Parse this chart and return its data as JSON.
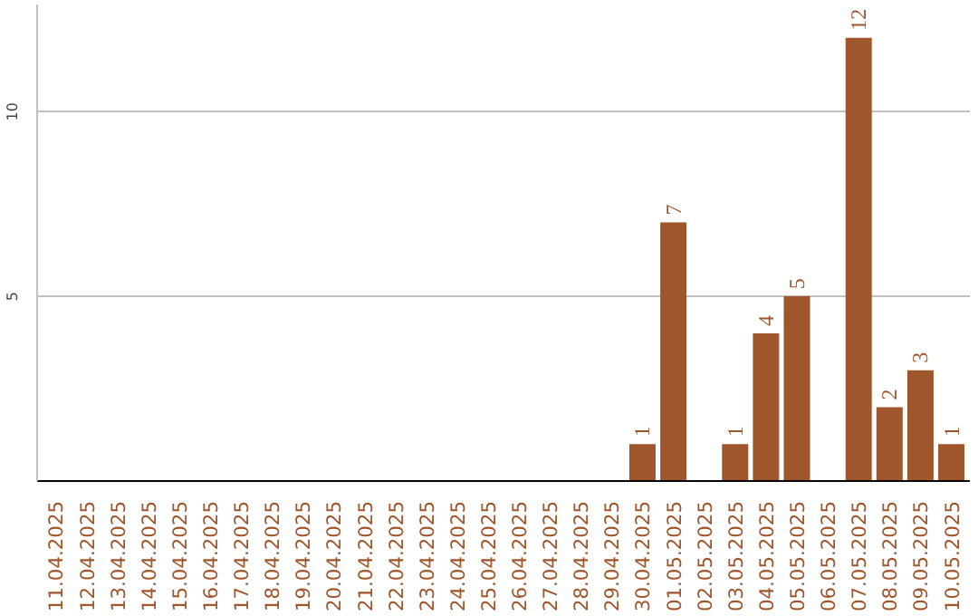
{
  "chart_data": {
    "type": "bar",
    "categories": [
      "11.04.2025",
      "12.04.2025",
      "13.04.2025",
      "14.04.2025",
      "15.04.2025",
      "16.04.2025",
      "17.04.2025",
      "18.04.2025",
      "19.04.2025",
      "20.04.2025",
      "21.04.2025",
      "22.04.2025",
      "23.04.2025",
      "24.04.2025",
      "25.04.2025",
      "26.04.2025",
      "27.04.2025",
      "28.04.2025",
      "29.04.2025",
      "30.04.2025",
      "01.05.2025",
      "02.05.2025",
      "03.05.2025",
      "04.05.2025",
      "05.05.2025",
      "06.05.2025",
      "07.05.2025",
      "08.05.2025",
      "09.05.2025",
      "10.05.2025"
    ],
    "values": [
      null,
      null,
      null,
      null,
      null,
      null,
      null,
      null,
      null,
      null,
      null,
      null,
      null,
      null,
      null,
      null,
      null,
      null,
      null,
      1,
      7,
      null,
      1,
      4,
      5,
      null,
      12,
      2,
      3,
      1
    ],
    "color": "#a0562c",
    "ylim": [
      0,
      12.9
    ],
    "yticks": [
      5,
      10
    ],
    "grid": "y",
    "data_labels": true
  }
}
